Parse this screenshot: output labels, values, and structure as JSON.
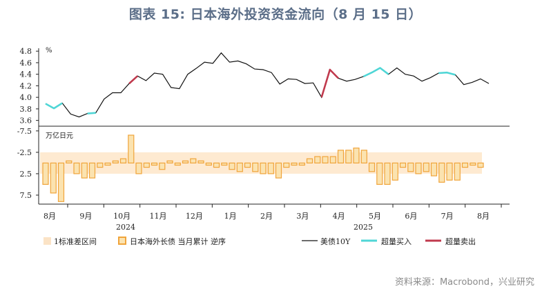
{
  "page": {
    "title": "图表 15: 日本海外投资资金流向（8 月 15 日）",
    "source": "资料来源：Macrobond，兴业研究"
  },
  "colors": {
    "line": "#111111",
    "buy": "#4fd6d6",
    "sell": "#c0394d",
    "bar_fill": "#fbe3b0",
    "bar_stroke": "#f0a43a",
    "band": "#fde3c2"
  },
  "chart_data": [
    {
      "type": "line",
      "panel": "top",
      "unit_label": "%",
      "ylim": [
        3.5,
        4.85
      ],
      "yticks": [
        "4.8",
        "4.6",
        "4.4",
        "4.2",
        "4.0",
        "3.8",
        "3.6"
      ],
      "series": [
        {
          "name": "美债10Y",
          "values": [
            3.89,
            3.81,
            3.9,
            3.71,
            3.66,
            3.72,
            3.73,
            3.97,
            4.08,
            4.08,
            4.24,
            4.37,
            4.29,
            4.42,
            4.4,
            4.17,
            4.15,
            4.4,
            4.5,
            4.61,
            4.59,
            4.77,
            4.61,
            4.63,
            4.58,
            4.49,
            4.48,
            4.43,
            4.23,
            4.32,
            4.31,
            4.24,
            4.25,
            4.0,
            4.48,
            4.33,
            4.28,
            4.31,
            4.36,
            4.43,
            4.51,
            4.4,
            4.51,
            4.4,
            4.37,
            4.28,
            4.34,
            4.42,
            4.43,
            4.39,
            4.22,
            4.26,
            4.32,
            4.24
          ],
          "buy_segments": [
            [
              0,
              2
            ],
            [
              5,
              6
            ],
            [
              38,
              41
            ],
            [
              47,
              49
            ]
          ],
          "sell_segments": [
            [
              10,
              11
            ],
            [
              33,
              35
            ]
          ]
        }
      ]
    },
    {
      "type": "bar",
      "panel": "bottom",
      "unit_label": "万亿日元",
      "ylim": [
        -8.6,
        9.6
      ],
      "yticks": [
        "-7.5",
        "-2.5",
        "2.5",
        "7.5"
      ],
      "series": [
        {
          "name": "日本海外长债 当月累计 逆序",
          "values": [
            5.0,
            7.0,
            9.0,
            -0.5,
            2.5,
            3.5,
            3.5,
            1.0,
            0.5,
            -0.5,
            -1.0,
            -6.5,
            2.5,
            1.0,
            0.5,
            1.5,
            -0.5,
            0.5,
            -0.5,
            -1.0,
            -0.5,
            0.5,
            1.0,
            0.5,
            1.5,
            2.0,
            1.0,
            2.0,
            2.5,
            2.5,
            3.5,
            1.0,
            0.5,
            0.5,
            -1.0,
            -1.5,
            -1.5,
            -1.5,
            -3.0,
            -3.0,
            -3.5,
            -3.0,
            2.0,
            5.0,
            5.0,
            4.0,
            1.0,
            2.0,
            2.5,
            2.0,
            3.0,
            4.5,
            4.0,
            4.0,
            1.0,
            0.5,
            1.0
          ]
        }
      ],
      "band": [
        -2.5,
        2.5
      ]
    }
  ],
  "x_axis": {
    "months": [
      "8月",
      "9月",
      "10月",
      "11月",
      "12月",
      "1月",
      "2月",
      "3月",
      "4月",
      "5月",
      "6月",
      "7月",
      "8月"
    ],
    "years": [
      "2024",
      "2025"
    ]
  },
  "legend": [
    {
      "kind": "band",
      "label": "1标准差区间"
    },
    {
      "kind": "bar",
      "label": "日本海外长债 当月累计 逆序"
    },
    {
      "kind": "line",
      "label": "美债10Y"
    },
    {
      "kind": "buy",
      "label": "超量买入"
    },
    {
      "kind": "sell",
      "label": "超量卖出"
    }
  ]
}
